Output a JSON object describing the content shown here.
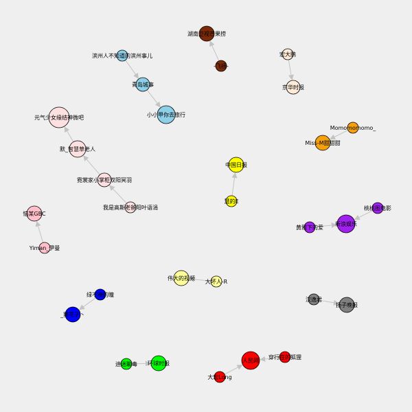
{
  "graph": {
    "nodes": [
      {
        "id": "n1",
        "label": "湖南卫视芒果捞",
        "color": "#7b2a0a"
      },
      {
        "id": "n2",
        "label": "-飞扬-",
        "color": "#7b2a0a"
      },
      {
        "id": "n3",
        "label": "宏大鹏",
        "color": "#fdebd8"
      },
      {
        "id": "n4",
        "label": "京华时报",
        "color": "#fdebd8"
      },
      {
        "id": "n5",
        "label": "滨州人不知道的滨州事儿",
        "color": "#8ecfe8"
      },
      {
        "id": "n6",
        "label": "青岛城事",
        "color": "#8ecfe8"
      },
      {
        "id": "n7",
        "label": "小小甲你去旅行",
        "color": "#8ecfe8"
      },
      {
        "id": "n8",
        "label": "元气少女缘结神微吧",
        "color": "#fde0e0"
      },
      {
        "id": "n9",
        "label": "默_智慧草老人",
        "color": "#fde0e0"
      },
      {
        "id": "n10",
        "label": "霓裳家小掌柜双阳冥羽",
        "color": "#fde0e0"
      },
      {
        "id": "n11",
        "label": "我是高斯老爸阳叶语涓",
        "color": "#fde0e0"
      },
      {
        "id": "n12",
        "label": "Momomomomo_",
        "color": "#f5a10f"
      },
      {
        "id": "n13",
        "label": "Miss-M甜甜甜",
        "color": "#f5a10f"
      },
      {
        "id": "n14",
        "label": "中国日报",
        "color": "#ffff00"
      },
      {
        "id": "n15",
        "label": "慧的E",
        "color": "#ffff00"
      },
      {
        "id": "n16",
        "label": "桃桃图电影",
        "color": "#a020f0"
      },
      {
        "id": "n17",
        "label": "新浪娱乐",
        "color": "#a020f0"
      },
      {
        "id": "n18",
        "label": "黄雅下的爱",
        "color": "#a020f0"
      },
      {
        "id": "n19",
        "label": "恼某GBC",
        "color": "#ffc0cb"
      },
      {
        "id": "n20",
        "label": "Yiman_伊曼",
        "color": "#ffc0cb"
      },
      {
        "id": "n21",
        "label": "伟大的视频",
        "color": "#ffff99"
      },
      {
        "id": "n22",
        "label": "大坏人-R",
        "color": "#ffff99"
      },
      {
        "id": "n23",
        "label": "绿不晓的瞳",
        "color": "#0000ff"
      },
      {
        "id": "n24",
        "label": "_窦花子丶",
        "color": "#0000ff"
      },
      {
        "id": "n25",
        "label": "汉逸君",
        "color": "#808080"
      },
      {
        "id": "n26",
        "label": "扬子晚报",
        "color": "#808080"
      },
      {
        "id": "n27",
        "label": "人民网",
        "color": "#ff0000"
      },
      {
        "id": "n28",
        "label": "穿行在的狐狸",
        "color": "#ff0000"
      },
      {
        "id": "n29",
        "label": "大宏Long",
        "color": "#ff0000"
      },
      {
        "id": "n30",
        "label": "迪迷聊毒",
        "color": "#00ff00"
      },
      {
        "id": "n31",
        "label": "环球时报",
        "color": "#00ff00"
      }
    ],
    "edges": [
      {
        "from": "n2",
        "to": "n1"
      },
      {
        "from": "n3",
        "to": "n4"
      },
      {
        "from": "n5",
        "to": "n6"
      },
      {
        "from": "n6",
        "to": "n7"
      },
      {
        "from": "n9",
        "to": "n8"
      },
      {
        "from": "n10",
        "to": "n9"
      },
      {
        "from": "n11",
        "to": "n10"
      },
      {
        "from": "n12",
        "to": "n13"
      },
      {
        "from": "n15",
        "to": "n14"
      },
      {
        "from": "n16",
        "to": "n17"
      },
      {
        "from": "n18",
        "to": "n17"
      },
      {
        "from": "n20",
        "to": "n19"
      },
      {
        "from": "n22",
        "to": "n21"
      },
      {
        "from": "n23",
        "to": "n24"
      },
      {
        "from": "n25",
        "to": "n26"
      },
      {
        "from": "n28",
        "to": "n27"
      },
      {
        "from": "n29",
        "to": "n27"
      },
      {
        "from": "n30",
        "to": "n31"
      }
    ]
  }
}
